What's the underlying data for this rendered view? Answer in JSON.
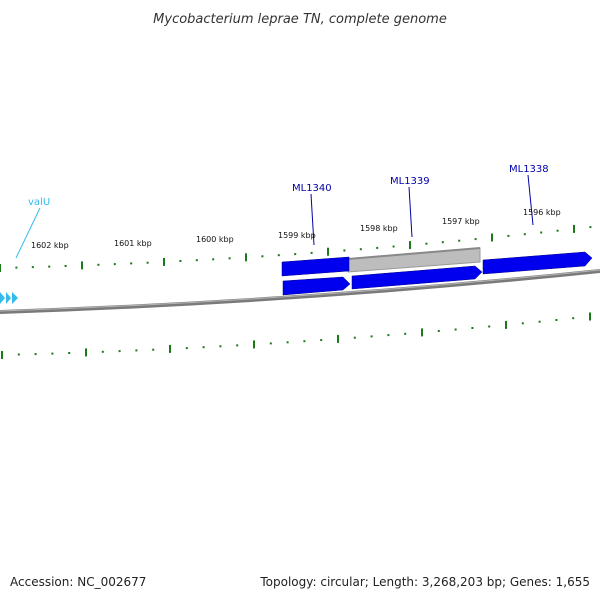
{
  "title": "Mycobacterium leprae TN, complete genome",
  "footer": {
    "accession": "Accession: NC_002677",
    "summary": "Topology: circular; Length: 3,268,203 bp; Genes: 1,655"
  },
  "colors": {
    "gene_blue": "#0000ee",
    "gene_grey": "#bdbdbd",
    "trna_cyan": "#33bbee",
    "tick_green": "#1a7a1a",
    "backbone": "#777777",
    "label_blue": "#0000aa"
  },
  "scale_labels": [
    "1602 kbp",
    "1601 kbp",
    "1600 kbp",
    "1599 kbp",
    "1598 kbp",
    "1597 kbp",
    "1596 kbp"
  ],
  "gene_labels": [
    {
      "name": "valU",
      "color": "#33bbee"
    },
    {
      "name": "ML1340",
      "color": "#0000aa"
    },
    {
      "name": "ML1339",
      "color": "#0000aa"
    },
    {
      "name": "ML1338",
      "color": "#0000aa"
    }
  ]
}
